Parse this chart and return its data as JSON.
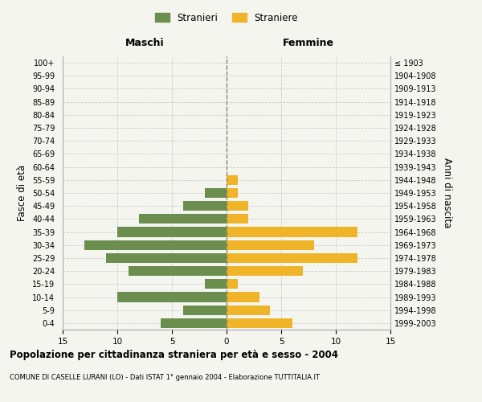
{
  "age_groups": [
    "0-4",
    "5-9",
    "10-14",
    "15-19",
    "20-24",
    "25-29",
    "30-34",
    "35-39",
    "40-44",
    "45-49",
    "50-54",
    "55-59",
    "60-64",
    "65-69",
    "70-74",
    "75-79",
    "80-84",
    "85-89",
    "90-94",
    "95-99",
    "100+"
  ],
  "birth_years": [
    "1999-2003",
    "1994-1998",
    "1989-1993",
    "1984-1988",
    "1979-1983",
    "1974-1978",
    "1969-1973",
    "1964-1968",
    "1959-1963",
    "1954-1958",
    "1949-1953",
    "1944-1948",
    "1939-1943",
    "1934-1938",
    "1929-1933",
    "1924-1928",
    "1919-1923",
    "1914-1918",
    "1909-1913",
    "1904-1908",
    "≤ 1903"
  ],
  "males": [
    6,
    4,
    10,
    2,
    9,
    11,
    13,
    10,
    8,
    4,
    2,
    0,
    0,
    0,
    0,
    0,
    0,
    0,
    0,
    0,
    0
  ],
  "females": [
    6,
    4,
    3,
    1,
    7,
    12,
    8,
    12,
    2,
    2,
    1,
    1,
    0,
    0,
    0,
    0,
    0,
    0,
    0,
    0,
    0
  ],
  "male_color": "#6b8e4e",
  "female_color": "#f0b429",
  "title": "Popolazione per cittadinanza straniera per età e sesso - 2004",
  "subtitle": "COMUNE DI CASELLE LURANI (LO) - Dati ISTAT 1° gennaio 2004 - Elaborazione TUTTITALIA.IT",
  "xlabel_left": "Maschi",
  "xlabel_right": "Femmine",
  "ylabel_left": "Fasce di età",
  "ylabel_right": "Anni di nascita",
  "xlim": 15,
  "legend_label_male": "Stranieri",
  "legend_label_female": "Straniere",
  "background_color": "#f5f5f0",
  "grid_color": "#cccccc"
}
